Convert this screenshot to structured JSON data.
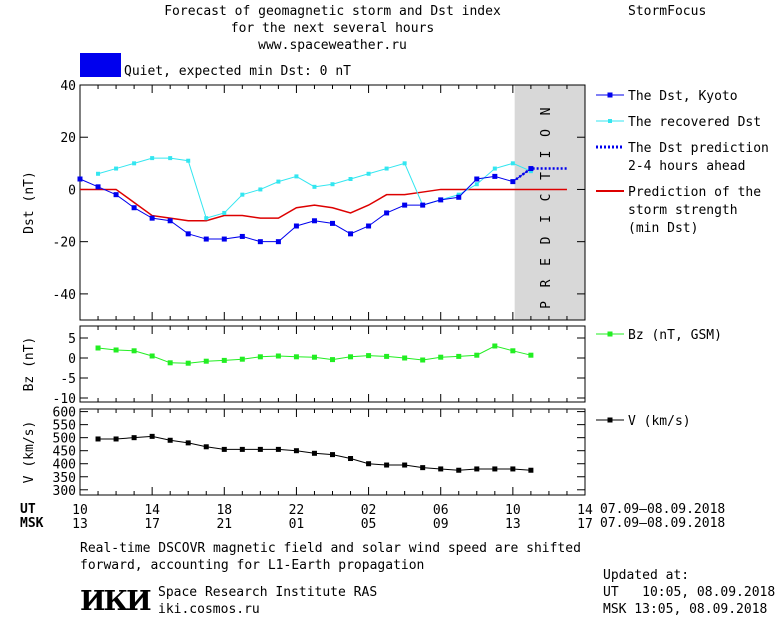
{
  "header": {
    "title_line1": "Forecast of geomagnetic storm and Dst index",
    "title_line2": "for the next several hours",
    "url": "www.spaceweather.ru",
    "brand": "StormFocus",
    "status_color": "#0000ee",
    "status_text": "Quiet, expected min Dst: 0 nT"
  },
  "colors": {
    "dst": "#0000ee",
    "recovered": "#33e6f0",
    "prediction": "#0000ee",
    "storm": "#dd0000",
    "bz": "#22ee22",
    "speed": "#000000",
    "prediction_band": "#d8d8d8"
  },
  "axes": {
    "x_ut_label": "UT",
    "x_msk_label": "MSK",
    "x_ut_ticks": [
      "10",
      "14",
      "18",
      "22",
      "02",
      "06",
      "10",
      "14"
    ],
    "x_msk_ticks": [
      "13",
      "17",
      "21",
      "01",
      "05",
      "09",
      "13",
      "17"
    ],
    "date_range_ut": "07.09–08.09.2018",
    "date_range_msk": "07.09–08.09.2018",
    "prediction_label": "PREDICTION"
  },
  "chart_data": [
    {
      "type": "line",
      "ylabel": "Dst (nT)",
      "ylim": [
        -50,
        40
      ],
      "yticks": [
        40,
        20,
        0,
        -20,
        -40
      ],
      "x_unit": "hours since 10 UT 07.09.2018",
      "legend_position": "right",
      "series": [
        {
          "name": "The Dst, Kyoto",
          "x": [
            0,
            1,
            2,
            3,
            4,
            5,
            6,
            7,
            8,
            9,
            10,
            11,
            12,
            13,
            14,
            15,
            16,
            17,
            18,
            19,
            20,
            21,
            22,
            23,
            24,
            25
          ],
          "y": [
            4,
            1,
            -2,
            -7,
            -11,
            -12,
            -17,
            -19,
            -19,
            -18,
            -20,
            -20,
            -14,
            -12,
            -13,
            -17,
            -14,
            -9,
            -6,
            -6,
            -4,
            -3,
            4,
            5,
            3,
            8
          ]
        },
        {
          "name": "The recovered Dst",
          "x": [
            1,
            2,
            3,
            4,
            5,
            6,
            7,
            8,
            9,
            10,
            11,
            12,
            13,
            14,
            15,
            16,
            17,
            18,
            19,
            20,
            21,
            22,
            23,
            24,
            25
          ],
          "y": [
            6,
            8,
            10,
            12,
            12,
            11,
            -11,
            -9,
            -2,
            0,
            3,
            5,
            1,
            2,
            4,
            6,
            8,
            10,
            -6,
            -4,
            -2,
            2,
            8,
            10,
            7
          ]
        },
        {
          "name": "The Dst prediction\n2-4 hours ahead",
          "x": [
            24,
            25,
            26,
            27
          ],
          "y": [
            3,
            8,
            8,
            8
          ]
        },
        {
          "name": "Prediction of the\nstorm strength\n(min Dst)",
          "x": [
            0,
            1,
            2,
            3,
            4,
            5,
            6,
            7,
            8,
            9,
            10,
            11,
            12,
            13,
            14,
            15,
            16,
            17,
            18,
            19,
            20,
            21,
            22,
            23,
            24,
            25,
            26,
            27
          ],
          "y": [
            0,
            0,
            0,
            -5,
            -10,
            -11,
            -12,
            -12,
            -10,
            -10,
            -11,
            -11,
            -7,
            -6,
            -7,
            -9,
            -6,
            -2,
            -2,
            -1,
            0,
            0,
            0,
            0,
            0,
            0,
            0,
            0
          ]
        }
      ],
      "prediction_region": [
        24.1,
        28
      ]
    },
    {
      "type": "line",
      "ylabel": "Bz (nT)",
      "ylim": [
        -11,
        8
      ],
      "yticks": [
        5,
        0,
        -5,
        -10
      ],
      "series": [
        {
          "name": "Bz (nT, GSM)",
          "x": [
            1,
            2,
            3,
            4,
            5,
            6,
            7,
            8,
            9,
            10,
            11,
            12,
            13,
            14,
            15,
            16,
            17,
            18,
            19,
            20,
            21,
            22,
            23,
            24,
            25
          ],
          "y": [
            2.5,
            2.0,
            1.8,
            0.5,
            -1.2,
            -1.3,
            -0.8,
            -0.6,
            -0.3,
            0.3,
            0.5,
            0.3,
            0.2,
            -0.4,
            0.3,
            0.6,
            0.4,
            0.0,
            -0.5,
            0.2,
            0.4,
            0.7,
            3.0,
            1.8,
            0.7
          ]
        }
      ]
    },
    {
      "type": "line",
      "ylabel": "V (km/s)",
      "ylim": [
        280,
        610
      ],
      "yticks": [
        600,
        550,
        500,
        450,
        400,
        350,
        300
      ],
      "series": [
        {
          "name": "V (km/s)",
          "x": [
            1,
            2,
            3,
            4,
            5,
            6,
            7,
            8,
            9,
            10,
            11,
            12,
            13,
            14,
            15,
            16,
            17,
            18,
            19,
            20,
            21,
            22,
            23,
            24,
            25
          ],
          "y": [
            495,
            495,
            500,
            505,
            490,
            480,
            465,
            455,
            455,
            455,
            455,
            450,
            440,
            435,
            420,
            400,
            395,
            395,
            385,
            380,
            375,
            380,
            380,
            380,
            375
          ]
        }
      ]
    }
  ],
  "footer": {
    "note_line1": "Real-time DSCOVR magnetic field and solar wind speed are shifted",
    "note_line2": "forward, accounting for L1-Earth propagation",
    "logo_text": "ИКИ",
    "institute": "Space Research Institute RAS",
    "site": "iki.cosmos.ru",
    "updated_label": "Updated at:",
    "updated_ut": "UT   10:05, 08.09.2018",
    "updated_msk": "MSK 13:05, 08.09.2018"
  }
}
